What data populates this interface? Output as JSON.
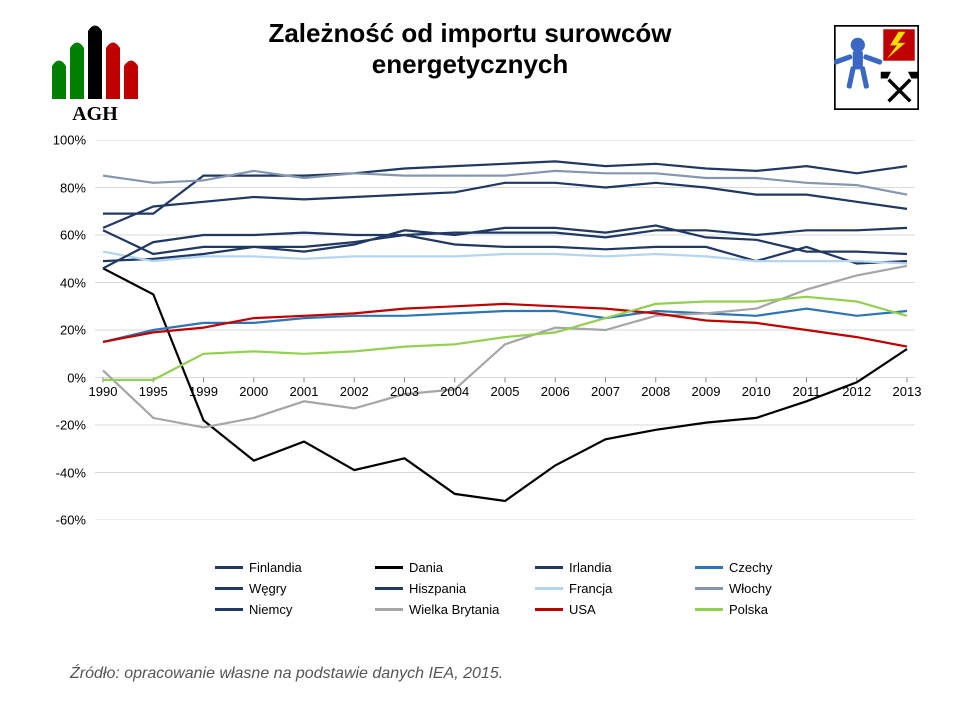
{
  "title_line1": "Zależność od importu surowców",
  "title_line2": "energetycznych",
  "title_fontsize": 26,
  "title_weight": "bold",
  "title_color": "#000000",
  "source_text": "Źródło: opracowanie własne na podstawie danych IEA, 2015.",
  "logo_agh": {
    "text": "AGH",
    "bars": [
      "#008000",
      "#008000",
      "#000000",
      "#c00000",
      "#c00000"
    ]
  },
  "chart": {
    "type": "line",
    "background_color": "#ffffff",
    "grid_color": "#d9d9d9",
    "axis_fontsize": 13,
    "axis_color": "#333333",
    "ylim": [
      -60,
      100
    ],
    "ytick_step": 20,
    "x_categories": [
      "1990",
      "1995",
      "1999",
      "2000",
      "2001",
      "2002",
      "2003",
      "2004",
      "2005",
      "2006",
      "2007",
      "2008",
      "2009",
      "2010",
      "2011",
      "2012",
      "2013"
    ],
    "yticks": [
      100,
      80,
      60,
      40,
      20,
      0,
      -20,
      -40,
      -60
    ],
    "line_width": 2.2,
    "series": [
      {
        "name": "Finlandia",
        "label_pl": "Finlandia",
        "color": "#1f3864",
        "values": [
          62,
          52,
          55,
          55,
          55,
          57,
          60,
          56,
          55,
          55,
          54,
          55,
          55,
          49,
          55,
          48,
          49
        ]
      },
      {
        "name": "Dania",
        "label_pl": "Dania",
        "color": "#000000",
        "values": [
          46,
          35,
          -18,
          -35,
          -27,
          -39,
          -34,
          -49,
          -52,
          -37,
          -26,
          -22,
          -19,
          -17,
          -10,
          -2,
          12
        ]
      },
      {
        "name": "Irlandia",
        "label_pl": "Irlandia",
        "color": "#203864",
        "values": [
          69,
          69,
          85,
          85,
          85,
          86,
          88,
          89,
          90,
          91,
          89,
          90,
          88,
          87,
          89,
          86,
          89
        ]
      },
      {
        "name": "Czechy",
        "label_pl": "Czechy",
        "color": "#2e75b6",
        "values": [
          15,
          20,
          23,
          23,
          25,
          26,
          26,
          27,
          28,
          28,
          25,
          28,
          27,
          26,
          29,
          26,
          28
        ]
      },
      {
        "name": "Wegry",
        "label_pl": "Węgry",
        "color": "#203864",
        "values": [
          49,
          50,
          52,
          55,
          53,
          56,
          62,
          60,
          63,
          63,
          61,
          64,
          59,
          58,
          53,
          53,
          52
        ]
      },
      {
        "name": "Hiszpania",
        "label_pl": "Hiszpania",
        "color": "#1f3864",
        "values": [
          63,
          72,
          74,
          76,
          75,
          76,
          77,
          78,
          82,
          82,
          80,
          82,
          80,
          77,
          77,
          74,
          71
        ]
      },
      {
        "name": "Francja",
        "label_pl": "Francja",
        "color": "#b4d5f0",
        "values": [
          53,
          49,
          51,
          51,
          50,
          51,
          51,
          51,
          52,
          52,
          51,
          52,
          51,
          49,
          49,
          49,
          48
        ]
      },
      {
        "name": "Wlochy",
        "label_pl": "Włochy",
        "color": "#8497b0",
        "values": [
          85,
          82,
          83,
          87,
          84,
          86,
          85,
          85,
          85,
          87,
          86,
          86,
          84,
          84,
          82,
          81,
          77
        ]
      },
      {
        "name": "Niemcy",
        "label_pl": "Niemcy",
        "color": "#1f3864",
        "values": [
          46,
          57,
          60,
          60,
          61,
          60,
          60,
          61,
          61,
          61,
          59,
          62,
          62,
          60,
          62,
          62,
          63
        ]
      },
      {
        "name": "Wielka Brytania",
        "label_pl": "Wielka Brytania",
        "color": "#a6a6a6",
        "values": [
          3,
          -17,
          -21,
          -17,
          -10,
          -13,
          -7,
          -5,
          14,
          21,
          20,
          26,
          27,
          29,
          37,
          43,
          47
        ]
      },
      {
        "name": "USA",
        "label_pl": "USA",
        "color": "#c00000",
        "values": [
          15,
          19,
          21,
          25,
          26,
          27,
          29,
          30,
          31,
          30,
          29,
          27,
          24,
          23,
          20,
          17,
          13
        ]
      },
      {
        "name": "Polska",
        "label_pl": "Polska",
        "color": "#92d050",
        "values": [
          -1,
          -1,
          10,
          11,
          10,
          11,
          13,
          14,
          17,
          19,
          25,
          31,
          32,
          32,
          34,
          32,
          26
        ]
      }
    ],
    "legend_order": [
      "Finlandia",
      "Dania",
      "Irlandia",
      "Czechy",
      "Wegry",
      "Hiszpania",
      "Francja",
      "Wlochy",
      "Niemcy",
      "Wielka Brytania",
      "USA",
      "Polska"
    ],
    "legend_fontsize": 13
  },
  "icon_right": {
    "bg": "#ffffff",
    "border": "#000000",
    "lightning": "#ffde00",
    "lightning_bg": "#c00000",
    "hammers": "#000000",
    "person": "#3a66c4"
  }
}
